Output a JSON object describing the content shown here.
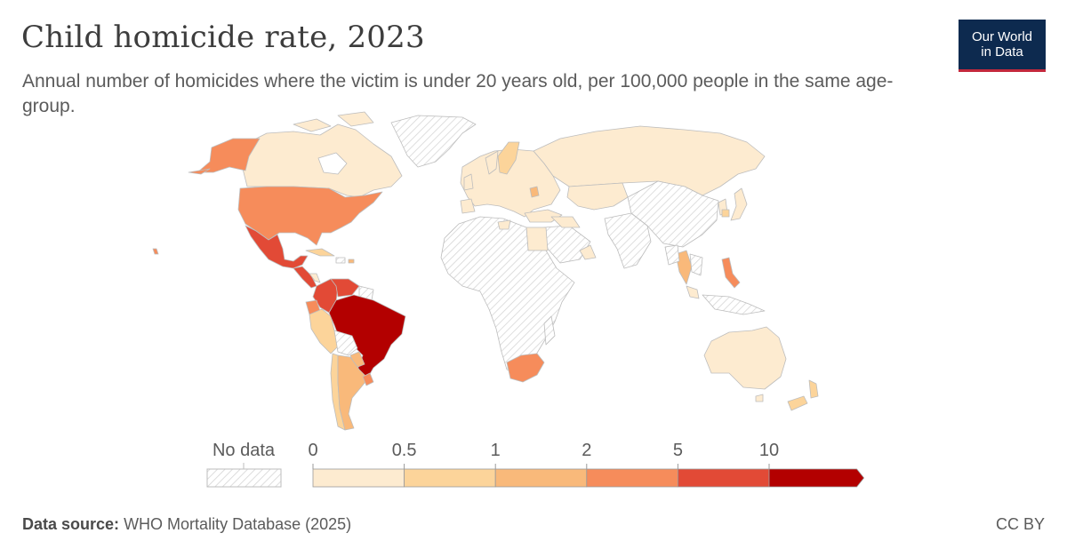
{
  "header": {
    "title": "Child homicide rate, 2023",
    "subtitle": "Annual number of homicides where the victim is under 20 years old, per 100,000 people in the same age-group."
  },
  "logo": {
    "line1": "Our World",
    "line2": "in Data"
  },
  "legend": {
    "no_data_label": "No data",
    "bins": [
      {
        "from": 0,
        "to": 0.5,
        "color": "#fdebd0"
      },
      {
        "from": 0.5,
        "to": 1,
        "color": "#fcd49a"
      },
      {
        "from": 1,
        "to": 2,
        "color": "#f9b97a"
      },
      {
        "from": 2,
        "to": 5,
        "color": "#f68c5b"
      },
      {
        "from": 5,
        "to": 10,
        "color": "#e24a36"
      },
      {
        "from": 10,
        "to": null,
        "color": "#b30000"
      }
    ],
    "tick_labels": [
      "0",
      "0.5",
      "1",
      "2",
      "5",
      "10"
    ]
  },
  "footer": {
    "source_label": "Data source:",
    "source_text": "WHO Mortality Database (2025)",
    "license": "CC BY"
  },
  "colors": {
    "no_data_hatch": "#d9d9d9",
    "border": "#bdbdbd",
    "logo_bg": "#0d2a4f",
    "logo_accent": "#c3283c"
  },
  "map_data": {
    "year": 2023,
    "countries": [
      {
        "country": "United States",
        "bin": "2-5"
      },
      {
        "country": "Canada",
        "bin": "0-0.5"
      },
      {
        "country": "Alaska (United States)",
        "bin": "2-5"
      },
      {
        "country": "Mexico",
        "bin": "5-10"
      },
      {
        "country": "Guatemala",
        "bin": "5-10"
      },
      {
        "country": "Colombia",
        "bin": "5-10"
      },
      {
        "country": "Venezuela",
        "bin": "5-10"
      },
      {
        "country": "Brazil",
        "bin": "10+"
      },
      {
        "country": "Ecuador",
        "bin": "2-5"
      },
      {
        "country": "Peru",
        "bin": "0.5-1"
      },
      {
        "country": "Bolivia",
        "bin": "no data"
      },
      {
        "country": "Paraguay",
        "bin": "1-2"
      },
      {
        "country": "Argentina",
        "bin": "1-2"
      },
      {
        "country": "Chile",
        "bin": "0.5-1"
      },
      {
        "country": "Uruguay",
        "bin": "2-5"
      },
      {
        "country": "Cuba",
        "bin": "0.5-1"
      },
      {
        "country": "Greenland",
        "bin": "no data"
      },
      {
        "country": "Russia",
        "bin": "0-0.5"
      },
      {
        "country": "Europe",
        "bin": "0-0.5"
      },
      {
        "country": "Sweden",
        "bin": "0.5-1"
      },
      {
        "country": "Egypt",
        "bin": "0-0.5"
      },
      {
        "country": "Africa (most countries)",
        "bin": "no data"
      },
      {
        "country": "South Africa",
        "bin": "2-5"
      },
      {
        "country": "Saudi Arabia",
        "bin": "no data"
      },
      {
        "country": "Central Asia",
        "bin": "0-0.5"
      },
      {
        "country": "China",
        "bin": "no data"
      },
      {
        "country": "India",
        "bin": "no data"
      },
      {
        "country": "Japan",
        "bin": "0-0.5"
      },
      {
        "country": "Thailand",
        "bin": "1-2"
      },
      {
        "country": "Philippines",
        "bin": "2-5"
      },
      {
        "country": "Australia",
        "bin": "0-0.5"
      },
      {
        "country": "New Zealand",
        "bin": "0.5-1"
      }
    ]
  }
}
